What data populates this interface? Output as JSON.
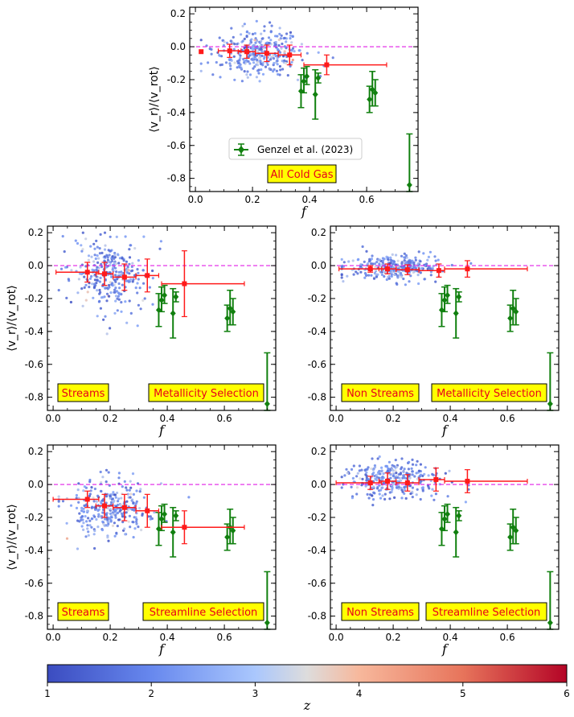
{
  "colors": {
    "reference_line": "#e11ee6",
    "median": "#ff1a1a",
    "observations": "#11800f",
    "label_box_fill": "#ffff00",
    "label_text": "#e8001a"
  },
  "chart_data": [
    {
      "type": "scatter",
      "title": "",
      "xlabel": "f",
      "ylabel": "⟨v_r⟩/⟨v_rot⟩",
      "xlim": [
        -0.02,
        0.78
      ],
      "ylim": [
        -0.88,
        0.24
      ],
      "x_ticks": [
        "0.0",
        "0.2",
        "0.4",
        "0.6"
      ],
      "y_ticks": [
        "0.2",
        "0.0",
        "-0.2",
        "-0.4",
        "-0.6",
        "-0.8"
      ],
      "labels": [
        "All Cold Gas"
      ],
      "legend": {
        "label": "Genzel et al. (2023)",
        "position": "lower-center"
      },
      "points": {
        "f_center": 0.22,
        "f_spread": 0.1,
        "v_center": -0.04,
        "v_spread": 0.07,
        "n": 320
      },
      "medians": [
        {
          "x": 0.02,
          "y": -0.03,
          "x_lo": 0.02,
          "x_hi": 0.02,
          "y_err": 0.0
        },
        {
          "x": 0.12,
          "y": -0.025,
          "x_lo": 0.08,
          "x_hi": 0.16,
          "y_err": 0.04
        },
        {
          "x": 0.18,
          "y": -0.03,
          "x_lo": 0.15,
          "x_hi": 0.21,
          "y_err": 0.04
        },
        {
          "x": 0.25,
          "y": -0.04,
          "x_lo": 0.21,
          "x_hi": 0.29,
          "y_err": 0.05
        },
        {
          "x": 0.33,
          "y": -0.05,
          "x_lo": 0.29,
          "x_hi": 0.37,
          "y_err": 0.06
        },
        {
          "x": 0.46,
          "y": -0.11,
          "x_lo": 0.38,
          "x_hi": 0.67,
          "y_err": 0.06
        }
      ],
      "points_span": [
        0.02,
        0.37
      ]
    },
    {
      "type": "scatter",
      "title": "",
      "xlabel": "f",
      "ylabel": "⟨v_r⟩/⟨v_rot⟩",
      "xlim": [
        -0.02,
        0.78
      ],
      "ylim": [
        -0.88,
        0.24
      ],
      "x_ticks": [
        "0.0",
        "0.2",
        "0.4",
        "0.6"
      ],
      "y_ticks": [
        "0.2",
        "0.0",
        "-0.2",
        "-0.4",
        "-0.6",
        "-0.8"
      ],
      "labels": [
        "Streams",
        "Metallicity Selection"
      ],
      "points": {
        "f_center": 0.2,
        "f_spread": 0.09,
        "v_center": -0.06,
        "v_spread": 0.11,
        "n": 300
      },
      "medians": [
        {
          "x": 0.12,
          "y": -0.04,
          "x_lo": 0.01,
          "x_hi": 0.16,
          "y_err": 0.06
        },
        {
          "x": 0.18,
          "y": -0.05,
          "x_lo": 0.15,
          "x_hi": 0.21,
          "y_err": 0.07
        },
        {
          "x": 0.25,
          "y": -0.07,
          "x_lo": 0.21,
          "x_hi": 0.29,
          "y_err": 0.08
        },
        {
          "x": 0.33,
          "y": -0.06,
          "x_lo": 0.29,
          "x_hi": 0.37,
          "y_err": 0.1
        },
        {
          "x": 0.46,
          "y": -0.11,
          "x_lo": 0.38,
          "x_hi": 0.67,
          "y_err": 0.2
        }
      ]
    },
    {
      "type": "scatter",
      "title": "",
      "xlabel": "f",
      "ylabel": "",
      "xlim": [
        -0.02,
        0.78
      ],
      "ylim": [
        -0.88,
        0.24
      ],
      "x_ticks": [
        "0.0",
        "0.2",
        "0.4",
        "0.6"
      ],
      "y_ticks": [
        "0.2",
        "0.0",
        "-0.2",
        "-0.4",
        "-0.6",
        "-0.8"
      ],
      "labels": [
        "Non Streams",
        "Metallicity Selection"
      ],
      "points": {
        "f_center": 0.2,
        "f_spread": 0.1,
        "v_center": -0.01,
        "v_spread": 0.04,
        "n": 300
      },
      "medians": [
        {
          "x": 0.12,
          "y": -0.02,
          "x_lo": 0.01,
          "x_hi": 0.16,
          "y_err": 0.02
        },
        {
          "x": 0.18,
          "y": -0.02,
          "x_lo": 0.15,
          "x_hi": 0.21,
          "y_err": 0.03
        },
        {
          "x": 0.25,
          "y": -0.025,
          "x_lo": 0.21,
          "x_hi": 0.29,
          "y_err": 0.03
        },
        {
          "x": 0.36,
          "y": -0.03,
          "x_lo": 0.29,
          "x_hi": 0.38,
          "y_err": 0.04
        },
        {
          "x": 0.46,
          "y": -0.02,
          "x_lo": 0.38,
          "x_hi": 0.67,
          "y_err": 0.05
        }
      ]
    },
    {
      "type": "scatter",
      "title": "",
      "xlabel": "f",
      "ylabel": "⟨v_r⟩/⟨v_rot⟩",
      "xlim": [
        -0.02,
        0.78
      ],
      "ylim": [
        -0.88,
        0.24
      ],
      "x_ticks": [
        "0.0",
        "0.2",
        "0.4",
        "0.6"
      ],
      "y_ticks": [
        "0.2",
        "0.0",
        "-0.2",
        "-0.4",
        "-0.6",
        "-0.8"
      ],
      "labels": [
        "Streams",
        "Streamline Selection"
      ],
      "points": {
        "f_center": 0.2,
        "f_spread": 0.09,
        "v_center": -0.15,
        "v_spread": 0.09,
        "n": 300
      },
      "medians": [
        {
          "x": 0.12,
          "y": -0.09,
          "x_lo": 0.0,
          "x_hi": 0.16,
          "y_err": 0.05
        },
        {
          "x": 0.18,
          "y": -0.13,
          "x_lo": 0.15,
          "x_hi": 0.21,
          "y_err": 0.07
        },
        {
          "x": 0.25,
          "y": -0.14,
          "x_lo": 0.21,
          "x_hi": 0.29,
          "y_err": 0.08
        },
        {
          "x": 0.33,
          "y": -0.16,
          "x_lo": 0.29,
          "x_hi": 0.37,
          "y_err": 0.1
        },
        {
          "x": 0.46,
          "y": -0.26,
          "x_lo": 0.38,
          "x_hi": 0.67,
          "y_err": 0.1
        }
      ]
    },
    {
      "type": "scatter",
      "title": "",
      "xlabel": "f",
      "ylabel": "",
      "xlim": [
        -0.02,
        0.78
      ],
      "ylim": [
        -0.88,
        0.24
      ],
      "x_ticks": [
        "0.0",
        "0.2",
        "0.4",
        "0.6"
      ],
      "y_ticks": [
        "0.2",
        "0.0",
        "-0.2",
        "-0.4",
        "-0.6",
        "-0.8"
      ],
      "labels": [
        "Non Streams",
        "Streamline Selection"
      ],
      "points": {
        "f_center": 0.2,
        "f_spread": 0.1,
        "v_center": 0.03,
        "v_spread": 0.06,
        "n": 300
      },
      "medians": [
        {
          "x": 0.12,
          "y": 0.01,
          "x_lo": 0.0,
          "x_hi": 0.16,
          "y_err": 0.04
        },
        {
          "x": 0.18,
          "y": 0.02,
          "x_lo": 0.15,
          "x_hi": 0.21,
          "y_err": 0.05
        },
        {
          "x": 0.25,
          "y": 0.01,
          "x_lo": 0.21,
          "x_hi": 0.29,
          "y_err": 0.05
        },
        {
          "x": 0.35,
          "y": 0.03,
          "x_lo": 0.29,
          "x_hi": 0.38,
          "y_err": 0.07
        },
        {
          "x": 0.46,
          "y": 0.02,
          "x_lo": 0.38,
          "x_hi": 0.67,
          "y_err": 0.07
        }
      ]
    }
  ],
  "observations": {
    "name": "Genzel et al. (2023)",
    "points": [
      {
        "x": 0.37,
        "y": -0.27,
        "y_lo": -0.37,
        "y_hi": -0.17
      },
      {
        "x": 0.38,
        "y": -0.21,
        "y_lo": -0.28,
        "y_hi": -0.13
      },
      {
        "x": 0.39,
        "y": -0.18,
        "y_lo": -0.23,
        "y_hi": -0.12
      },
      {
        "x": 0.42,
        "y": -0.29,
        "y_lo": -0.44,
        "y_hi": -0.14
      },
      {
        "x": 0.43,
        "y": -0.19,
        "y_lo": -0.22,
        "y_hi": -0.16
      },
      {
        "x": 0.61,
        "y": -0.32,
        "y_lo": -0.4,
        "y_hi": -0.24
      },
      {
        "x": 0.62,
        "y": -0.26,
        "y_lo": -0.36,
        "y_hi": -0.15
      },
      {
        "x": 0.63,
        "y": -0.28,
        "y_lo": -0.36,
        "y_hi": -0.2
      },
      {
        "x": 0.75,
        "y": -0.84,
        "y_lo": -0.88,
        "y_hi": -0.53
      }
    ]
  },
  "colorbar": {
    "label": "z",
    "min": 1,
    "max": 6,
    "ticks": [
      "1",
      "2",
      "3",
      "4",
      "5",
      "6"
    ],
    "colormap": "coolwarm"
  }
}
